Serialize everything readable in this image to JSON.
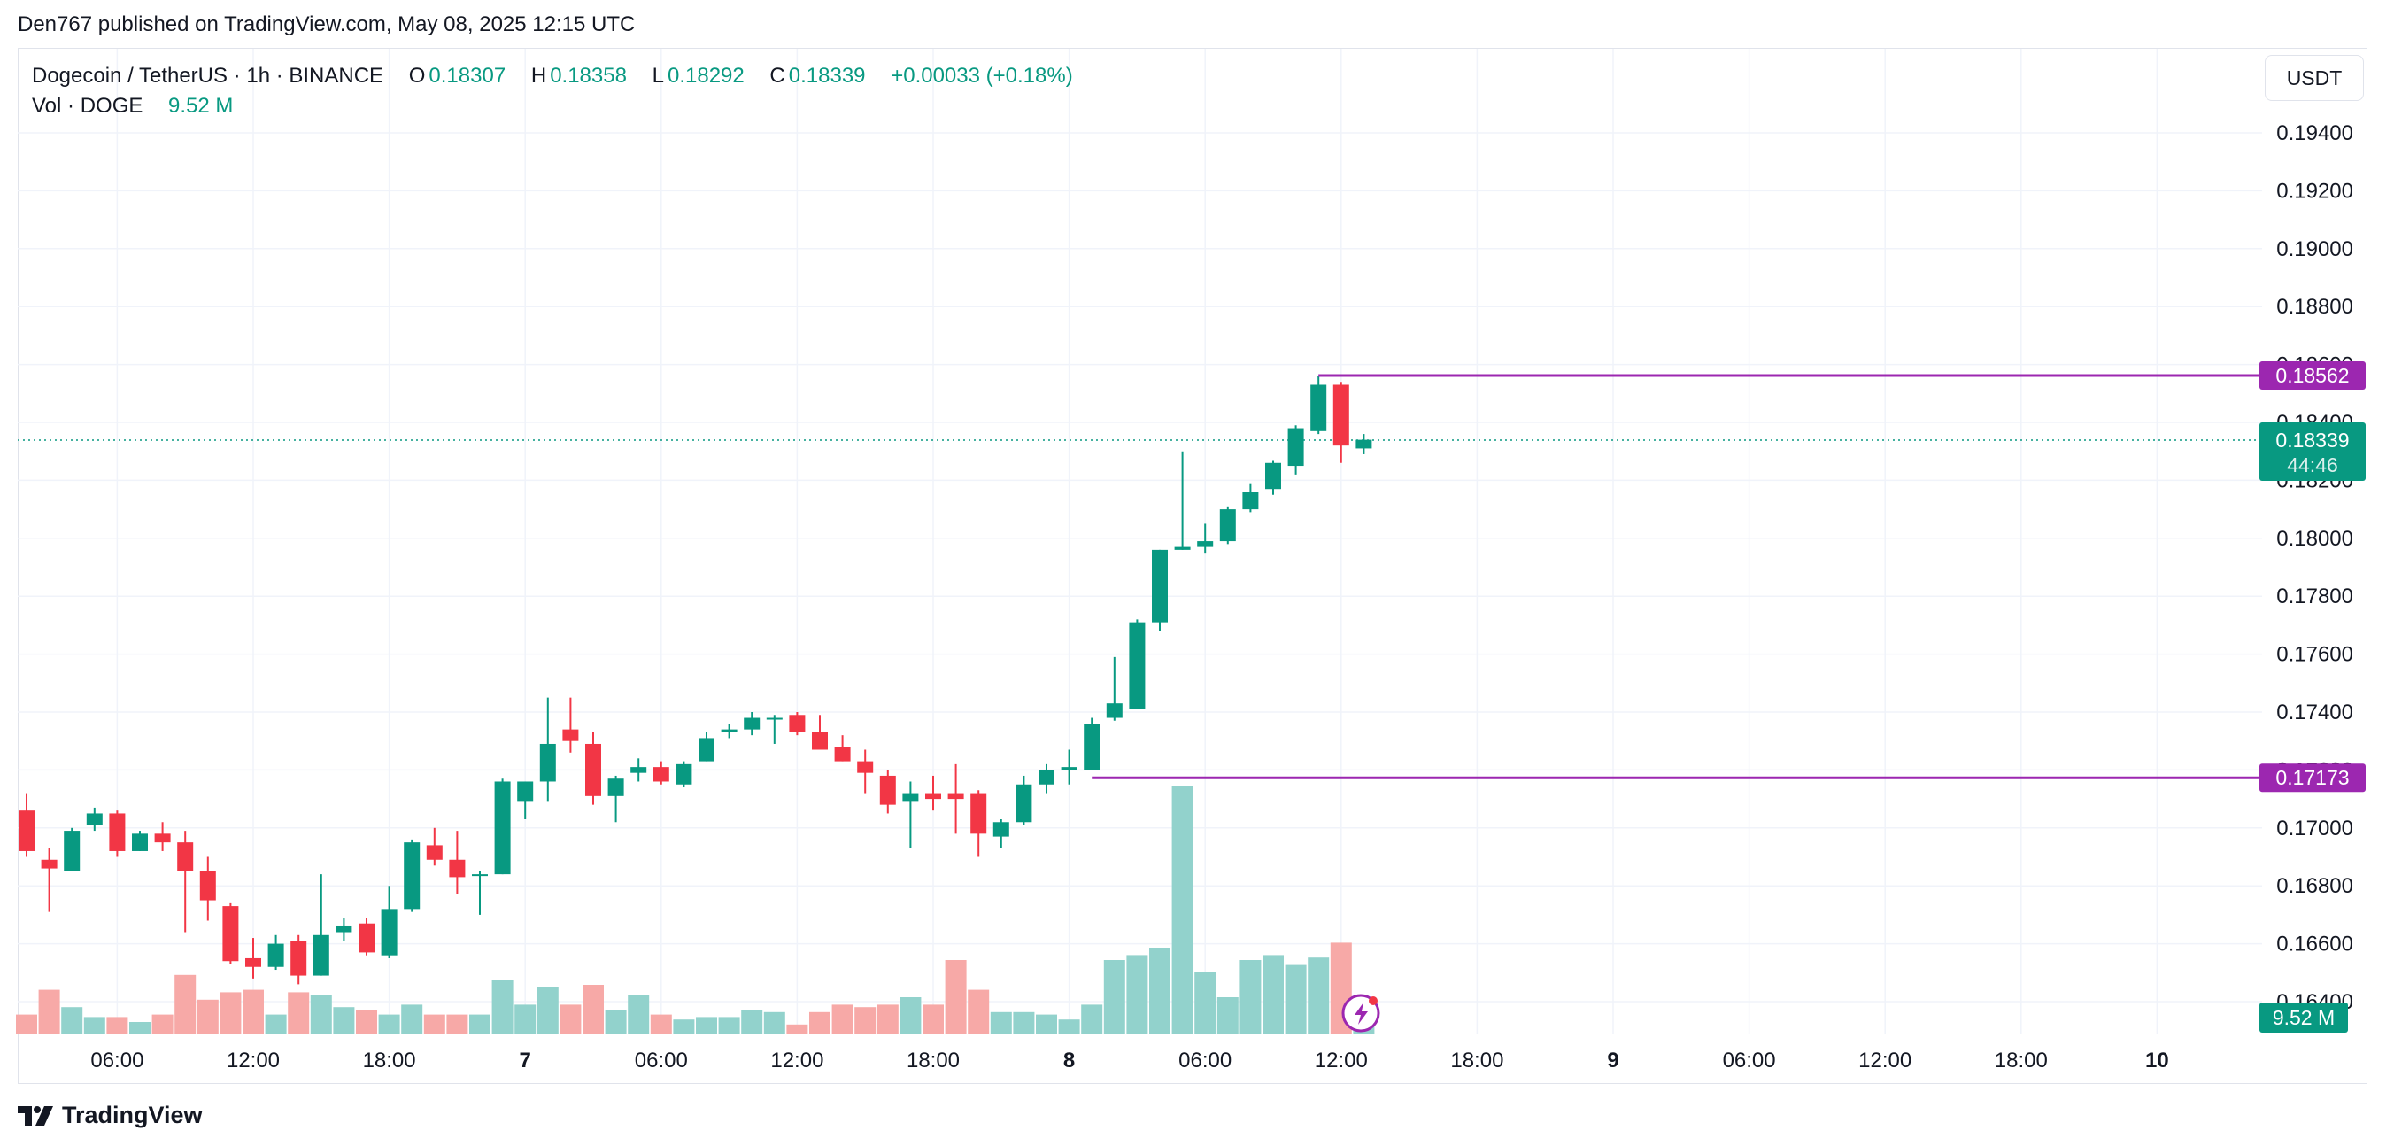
{
  "header": {
    "publisher_line": "Den767 published on TradingView.com, May 08, 2025 12:15 UTC"
  },
  "legend": {
    "symbol": "Dogecoin / TetherUS · 1h · BINANCE",
    "o_label": "O",
    "o_value": "0.18307",
    "h_label": "H",
    "h_value": "0.18358",
    "l_label": "L",
    "l_value": "0.18292",
    "c_label": "C",
    "c_value": "0.18339",
    "change": "+0.00033 (+0.18%)",
    "vol_label": "Vol · DOGE",
    "vol_value": "9.52 M"
  },
  "currency_button": "USDT",
  "footer": {
    "brand": "TradingView"
  },
  "colors": {
    "up": "#089981",
    "down": "#f23645",
    "vol_up": "#92d2cc",
    "vol_down": "#f7a9a7",
    "level": "#9c27b0",
    "grid": "#f0f3fa"
  },
  "chart_data": {
    "type": "candlestick",
    "title": "Dogecoin / TetherUS · 1h · BINANCE",
    "y_range": [
      0.163,
      0.1966
    ],
    "y_ticks": [
      0.164,
      0.166,
      0.168,
      0.17,
      0.172,
      0.174,
      0.176,
      0.178,
      0.18,
      0.182,
      0.184,
      0.186,
      0.188,
      0.19,
      0.192,
      0.194
    ],
    "y_tick_labels": [
      "0.16400",
      "0.16600",
      "0.16800",
      "0.17000",
      "0.17200",
      "0.17400",
      "0.17600",
      "0.17800",
      "0.18000",
      "0.18200",
      "0.18400",
      "0.18600",
      "0.18800",
      "0.19000",
      "0.19200",
      "0.19400"
    ],
    "x_ticks": [
      {
        "index": 4,
        "label": "06:00",
        "bold": false
      },
      {
        "index": 10,
        "label": "12:00",
        "bold": false
      },
      {
        "index": 16,
        "label": "18:00",
        "bold": false
      },
      {
        "index": 22,
        "label": "7",
        "bold": true
      },
      {
        "index": 28,
        "label": "06:00",
        "bold": false
      },
      {
        "index": 34,
        "label": "12:00",
        "bold": false
      },
      {
        "index": 40,
        "label": "18:00",
        "bold": false
      },
      {
        "index": 46,
        "label": "8",
        "bold": true
      },
      {
        "index": 52,
        "label": "06:00",
        "bold": false
      },
      {
        "index": 58,
        "label": "12:00",
        "bold": false
      },
      {
        "index": 64,
        "label": "18:00",
        "bold": false
      },
      {
        "index": 70,
        "label": "9",
        "bold": true
      },
      {
        "index": 76,
        "label": "06:00",
        "bold": false
      },
      {
        "index": 82,
        "label": "12:00",
        "bold": false
      },
      {
        "index": 88,
        "label": "18:00",
        "bold": false
      },
      {
        "index": 94,
        "label": "10",
        "bold": true
      }
    ],
    "candles": [
      {
        "o": 0.1706,
        "h": 0.1712,
        "l": 0.169,
        "c": 0.1692,
        "v": 8
      },
      {
        "o": 0.1689,
        "h": 0.1693,
        "l": 0.1671,
        "c": 0.1686,
        "v": 18
      },
      {
        "o": 0.1685,
        "h": 0.17,
        "l": 0.1685,
        "c": 0.1699,
        "v": 11
      },
      {
        "o": 0.1701,
        "h": 0.1707,
        "l": 0.1699,
        "c": 0.1705,
        "v": 7
      },
      {
        "o": 0.1705,
        "h": 0.1706,
        "l": 0.169,
        "c": 0.1692,
        "v": 7
      },
      {
        "o": 0.1692,
        "h": 0.1699,
        "l": 0.1692,
        "c": 0.1698,
        "v": 5
      },
      {
        "o": 0.1698,
        "h": 0.1702,
        "l": 0.1692,
        "c": 0.1695,
        "v": 8
      },
      {
        "o": 0.1695,
        "h": 0.1699,
        "l": 0.1664,
        "c": 0.1685,
        "v": 24
      },
      {
        "o": 0.1685,
        "h": 0.169,
        "l": 0.1668,
        "c": 0.1675,
        "v": 14
      },
      {
        "o": 0.1673,
        "h": 0.1674,
        "l": 0.1653,
        "c": 0.1654,
        "v": 17
      },
      {
        "o": 0.1655,
        "h": 0.1662,
        "l": 0.1648,
        "c": 0.1652,
        "v": 18
      },
      {
        "o": 0.1652,
        "h": 0.1663,
        "l": 0.1651,
        "c": 0.166,
        "v": 8
      },
      {
        "o": 0.1661,
        "h": 0.1663,
        "l": 0.1646,
        "c": 0.1649,
        "v": 17
      },
      {
        "o": 0.1649,
        "h": 0.1684,
        "l": 0.1649,
        "c": 0.1663,
        "v": 16
      },
      {
        "o": 0.1664,
        "h": 0.1669,
        "l": 0.1661,
        "c": 0.1666,
        "v": 11
      },
      {
        "o": 0.1667,
        "h": 0.1669,
        "l": 0.1656,
        "c": 0.1657,
        "v": 10
      },
      {
        "o": 0.1656,
        "h": 0.168,
        "l": 0.1655,
        "c": 0.1672,
        "v": 8
      },
      {
        "o": 0.1672,
        "h": 0.1696,
        "l": 0.1671,
        "c": 0.1695,
        "v": 12
      },
      {
        "o": 0.1694,
        "h": 0.17,
        "l": 0.1687,
        "c": 0.1689,
        "v": 8
      },
      {
        "o": 0.1689,
        "h": 0.1699,
        "l": 0.1677,
        "c": 0.1683,
        "v": 8
      },
      {
        "o": 0.1684,
        "h": 0.1685,
        "l": 0.167,
        "c": 0.1684,
        "v": 8
      },
      {
        "o": 0.1684,
        "h": 0.1717,
        "l": 0.1684,
        "c": 0.1716,
        "v": 22
      },
      {
        "o": 0.1709,
        "h": 0.1716,
        "l": 0.1703,
        "c": 0.1716,
        "v": 12
      },
      {
        "o": 0.1716,
        "h": 0.1745,
        "l": 0.1709,
        "c": 0.1729,
        "v": 19
      },
      {
        "o": 0.1734,
        "h": 0.1745,
        "l": 0.1726,
        "c": 0.173,
        "v": 12
      },
      {
        "o": 0.1729,
        "h": 0.1733,
        "l": 0.1708,
        "c": 0.1711,
        "v": 20
      },
      {
        "o": 0.1711,
        "h": 0.1718,
        "l": 0.1702,
        "c": 0.1717,
        "v": 10
      },
      {
        "o": 0.1719,
        "h": 0.1724,
        "l": 0.1716,
        "c": 0.1721,
        "v": 16
      },
      {
        "o": 0.1721,
        "h": 0.1723,
        "l": 0.1715,
        "c": 0.1716,
        "v": 8
      },
      {
        "o": 0.1715,
        "h": 0.1723,
        "l": 0.1714,
        "c": 0.1722,
        "v": 6
      },
      {
        "o": 0.1723,
        "h": 0.1733,
        "l": 0.1723,
        "c": 0.1731,
        "v": 7
      },
      {
        "o": 0.1733,
        "h": 0.1736,
        "l": 0.1731,
        "c": 0.1734,
        "v": 7
      },
      {
        "o": 0.1734,
        "h": 0.174,
        "l": 0.1732,
        "c": 0.1738,
        "v": 10
      },
      {
        "o": 0.1738,
        "h": 0.1739,
        "l": 0.1729,
        "c": 0.1738,
        "v": 9
      },
      {
        "o": 0.1739,
        "h": 0.174,
        "l": 0.1732,
        "c": 0.1733,
        "v": 4
      },
      {
        "o": 0.1733,
        "h": 0.1739,
        "l": 0.173,
        "c": 0.1727,
        "v": 9
      },
      {
        "o": 0.1728,
        "h": 0.1732,
        "l": 0.1723,
        "c": 0.1723,
        "v": 12
      },
      {
        "o": 0.1723,
        "h": 0.1727,
        "l": 0.1712,
        "c": 0.1719,
        "v": 11
      },
      {
        "o": 0.1718,
        "h": 0.172,
        "l": 0.1705,
        "c": 0.1708,
        "v": 12
      },
      {
        "o": 0.1709,
        "h": 0.1716,
        "l": 0.1693,
        "c": 0.1712,
        "v": 15
      },
      {
        "o": 0.1712,
        "h": 0.1718,
        "l": 0.1706,
        "c": 0.171,
        "v": 12
      },
      {
        "o": 0.1712,
        "h": 0.1722,
        "l": 0.1698,
        "c": 0.171,
        "v": 30
      },
      {
        "o": 0.1712,
        "h": 0.1713,
        "l": 0.169,
        "c": 0.1698,
        "v": 18
      },
      {
        "o": 0.1697,
        "h": 0.1703,
        "l": 0.1693,
        "c": 0.1702,
        "v": 9
      },
      {
        "o": 0.1702,
        "h": 0.1718,
        "l": 0.1701,
        "c": 0.1715,
        "v": 9
      },
      {
        "o": 0.1715,
        "h": 0.1722,
        "l": 0.1712,
        "c": 0.172,
        "v": 8
      },
      {
        "o": 0.172,
        "h": 0.1727,
        "l": 0.1715,
        "c": 0.1721,
        "v": 6
      },
      {
        "o": 0.172,
        "h": 0.1738,
        "l": 0.172,
        "c": 0.1736,
        "v": 12
      },
      {
        "o": 0.1738,
        "h": 0.1759,
        "l": 0.1737,
        "c": 0.1743,
        "v": 30
      },
      {
        "o": 0.1741,
        "h": 0.1772,
        "l": 0.1741,
        "c": 0.1771,
        "v": 32
      },
      {
        "o": 0.1771,
        "h": 0.1796,
        "l": 0.1768,
        "c": 0.1796,
        "v": 35
      },
      {
        "o": 0.1796,
        "h": 0.183,
        "l": 0.1796,
        "c": 0.1797,
        "v": 100
      },
      {
        "o": 0.1797,
        "h": 0.1805,
        "l": 0.1795,
        "c": 0.1799,
        "v": 25
      },
      {
        "o": 0.1799,
        "h": 0.1811,
        "l": 0.1798,
        "c": 0.181,
        "v": 15
      },
      {
        "o": 0.181,
        "h": 0.1819,
        "l": 0.1809,
        "c": 0.1816,
        "v": 30
      },
      {
        "o": 0.1817,
        "h": 0.1827,
        "l": 0.1815,
        "c": 0.1826,
        "v": 32
      },
      {
        "o": 0.1825,
        "h": 0.1839,
        "l": 0.1822,
        "c": 0.1838,
        "v": 28
      },
      {
        "o": 0.1837,
        "h": 0.1856,
        "l": 0.1836,
        "c": 0.1853,
        "v": 31
      },
      {
        "o": 0.1853,
        "h": 0.1854,
        "l": 0.1826,
        "c": 0.1832,
        "v": 37
      },
      {
        "o": 0.1831,
        "h": 0.1836,
        "l": 0.1829,
        "c": 0.1834,
        "v": 9
      }
    ],
    "levels": [
      {
        "value": 0.18562,
        "label": "0.18562",
        "start_index": 57
      },
      {
        "value": 0.17173,
        "label": "0.17173",
        "start_index": 47
      }
    ],
    "last_price": {
      "value": 0.18339,
      "label": "0.18339",
      "countdown": "44:46"
    },
    "volume_tag": "9.52 M"
  }
}
